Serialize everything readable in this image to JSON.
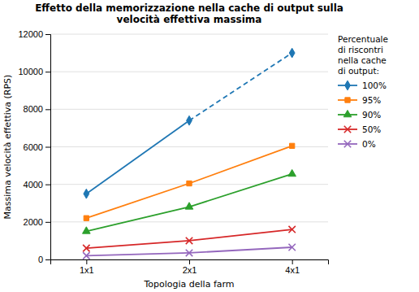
{
  "chart_data": {
    "type": "line",
    "title": "Effetto della memorizzazione nella cache di output sulla\nvelocità effettiva massima",
    "xlabel": "Topologia della farm",
    "ylabel": "Massima velocità effettiva (RPS)",
    "categories": [
      "1x1",
      "2x1",
      "4x1"
    ],
    "ylim": [
      0,
      12000
    ],
    "yticks": [
      0,
      2000,
      4000,
      6000,
      8000,
      10000,
      12000
    ],
    "grid": true,
    "legend": "right",
    "legend_title": "Percentuale\ndi riscontri\nnella cache\ndi output:",
    "series": [
      {
        "name": "100%",
        "values": [
          3500,
          7400,
          11000
        ],
        "marker": "diamond",
        "line_style": "solid-dashed"
      },
      {
        "name": "95%",
        "values": [
          2200,
          4050,
          6050
        ],
        "marker": "square",
        "line_style": "solid"
      },
      {
        "name": "90%",
        "values": [
          1500,
          2800,
          4550
        ],
        "marker": "triangle",
        "line_style": "solid"
      },
      {
        "name": "50%",
        "values": [
          600,
          1000,
          1600
        ],
        "marker": "x",
        "line_style": "solid"
      },
      {
        "name": "0%",
        "values": [
          200,
          350,
          650
        ],
        "marker": "x",
        "line_style": "solid"
      }
    ]
  }
}
